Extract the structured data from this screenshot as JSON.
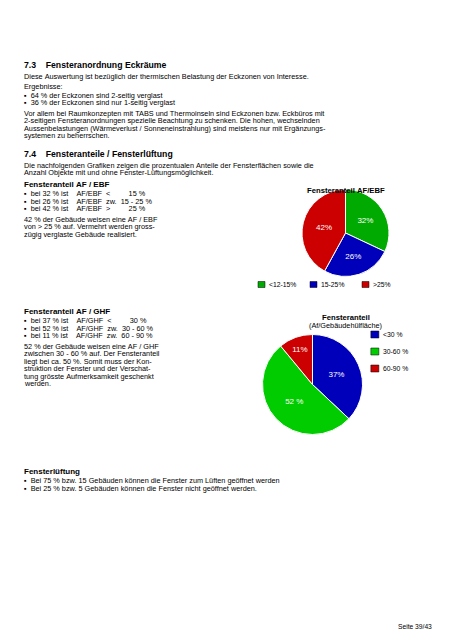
{
  "chart_data": [
    {
      "type": "pie",
      "title": "Fensteranteil AF/EBF",
      "categories": [
        "<12-15%",
        "15-25%",
        ">25%"
      ],
      "values": [
        32,
        26,
        42
      ],
      "value_labels": [
        "32%",
        "26%",
        "42%"
      ],
      "colors": [
        "#00aa00",
        "#0000bb",
        "#cc0000"
      ],
      "data_labels": true,
      "legend": "bottom",
      "annotations": [
        "7.3    Fensteranordnung Eckräume",
        "Diese Auswertung ist bezüglich der thermischen Belastung der Eckzonen von Interesse.",
        "Ergebnisse:",
        "▪  64 % der Eckzonen sind 2-seitig verglast",
        "▪  36 % der Eckzonen sind nur 1-seitig verglast",
        "Vor allem bei Raumkonzepten mit TABS und Thermoinseln sind Eckzonen bzw. Eckbüros mit",
        "2-seitigen Fensteranordnungen spezielle Beachtung zu schenken. Die hohen, wechselnden",
        "Aussenbelastungen (Wärmeverlust / Sonneneinstrahlung) sind meistens nur mit Ergänzungs-",
        "systemen zu beherrschen.",
        "7.4    Fensteranteile / Fensterlüftung",
        "Die nachfolgenden Grafiken zeigen die prozentualen Anteile der Fensterflächen sowie die",
        "Anzahl Objekte mit und ohne Fenster-Lüftungsmöglichkeit.",
        "Fensteranteil AF / EBF",
        "▪  bei 32 % ist    AF/EBF  <         15 %",
        "▪  bei 26 % ist    AF/EBF  zw.  15 - 25 %",
        "▪  bei 42 % ist    AF/EBF  >         25 %",
        "42 % der Gebäude weisen eine AF / EBF",
        "von > 25 % auf. Vermehrt werden gross-",
        "zügig verglaste Gebäude realisiert."
      ]
    },
    {
      "type": "pie",
      "title": "Fensteranteil",
      "subtitle": "(Af/Gebäudehülfläche)",
      "categories": [
        "<30 %",
        "30-60 %",
        "60-90 %"
      ],
      "values": [
        37,
        52,
        11
      ],
      "value_labels": [
        "37%",
        "52 %",
        "11%"
      ],
      "colors": [
        "#0000bb",
        "#00cc00",
        "#cc0000"
      ],
      "data_labels": true,
      "legend": "right",
      "annotations": [
        "Fensteranteil AF / GHF",
        "▪  bei 37 % ist    AF/GHF  <         30 %",
        "▪  bei 52 % ist    AF/GHF  zw.  30 - 60 %",
        "▪  bei 11 % ist    AF/GHF  zw.  60 - 90 %",
        "52 % der Gebäude weisen eine AF / GHF",
        "zwischen 30 - 60 % auf. Der Fensteranteil",
        "liegt bei ca. 50 %. Somit muss der Kon-",
        "struktion der Fenster und der Verschat-",
        "tung grösste Aufmerksamkeit geschenkt",
        "werden.",
        "Fensterlüftung",
        "▪  Bei 75 % bzw. 15 Gebäuden können die Fenster zum Lüften geöffnet werden",
        "▪  Bei 25 % bzw. 5 Gebäuden können die Fenster nicht geöffnet werden.",
        "Seite 39/43"
      ]
    }
  ]
}
